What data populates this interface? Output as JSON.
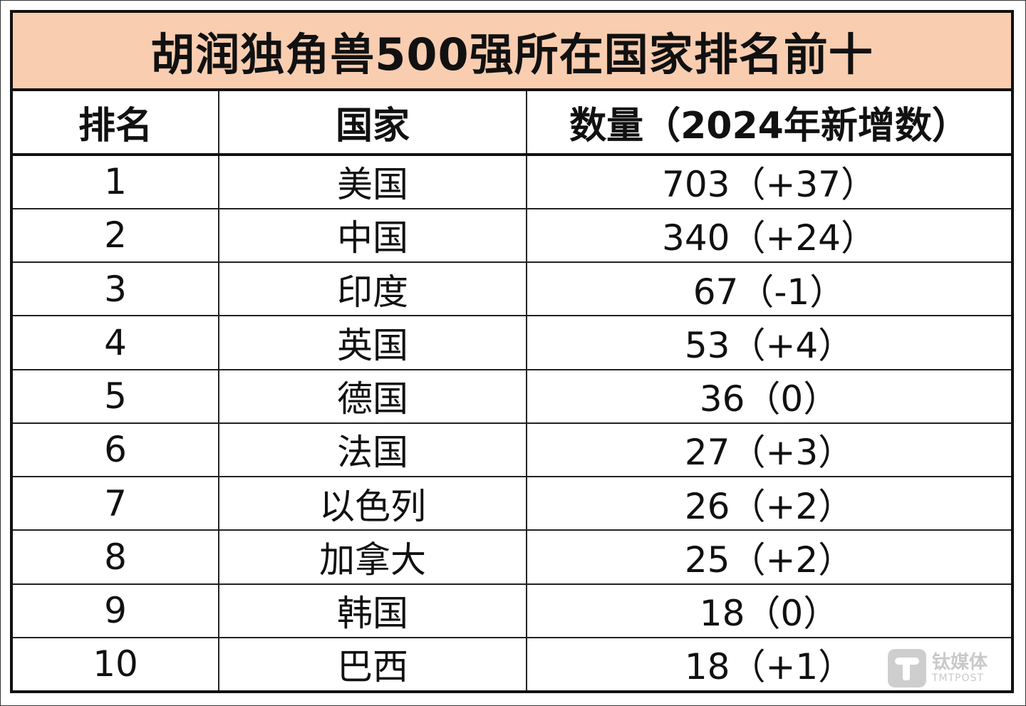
{
  "title": "胡润独角兽500强所在国家排名前十",
  "headers": [
    "排名",
    "国家",
    "数量（2024年新增数）"
  ],
  "rows": [
    {
      "rank": "1",
      "country": "美国",
      "count": "703（+37）"
    },
    {
      "rank": "2",
      "country": "中国",
      "count": "340（+24）"
    },
    {
      "rank": "3",
      "country": "印度",
      "count": "67（-1）"
    },
    {
      "rank": "4",
      "country": "英国",
      "count": "53（+4）"
    },
    {
      "rank": "5",
      "country": "德国",
      "count": "36（0）"
    },
    {
      "rank": "6",
      "country": "法国",
      "count": "27（+3）"
    },
    {
      "rank": "7",
      "country": "以色列",
      "count": "26（+2）"
    },
    {
      "rank": "8",
      "country": "加拿大",
      "count": "25（+2）"
    },
    {
      "rank": "9",
      "country": "韩国",
      "count": "18（0）"
    },
    {
      "rank": "10",
      "country": "巴西",
      "count": "18（+1）"
    }
  ],
  "watermark": {
    "cn": "钛媒体",
    "en": "TMTPOST"
  },
  "colors": {
    "title_bg": "#f9cdb0"
  }
}
